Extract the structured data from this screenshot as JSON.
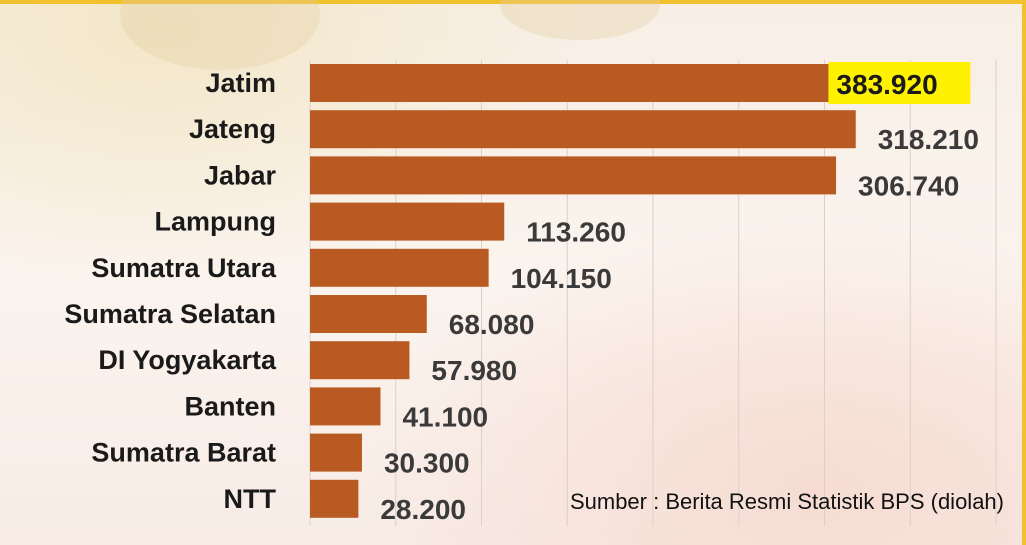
{
  "chart_data": {
    "type": "bar",
    "orientation": "horizontal",
    "categories": [
      "Jatim",
      "Jateng",
      "Jabar",
      "Lampung",
      "Sumatra Utara",
      "Sumatra Selatan",
      "DI Yogyakarta",
      "Banten",
      "Sumatra Barat",
      "NTT"
    ],
    "values": [
      383920,
      318210,
      306740,
      113260,
      104150,
      68080,
      57980,
      41100,
      30300,
      28200
    ],
    "value_labels": [
      "383.920",
      "318.210",
      "306.740",
      "113.260",
      "104.150",
      "68.080",
      "57.980",
      "41.100",
      "30.300",
      "28.200"
    ],
    "highlight_index": 0,
    "xlim": [
      0,
      400000
    ],
    "grid": true,
    "colors": {
      "bar": "#b85a22",
      "highlight_background": "#fff200",
      "grid": "#d9d0c8"
    }
  },
  "source_note": "Sumber : Berita Resmi Statistik BPS (diolah)"
}
